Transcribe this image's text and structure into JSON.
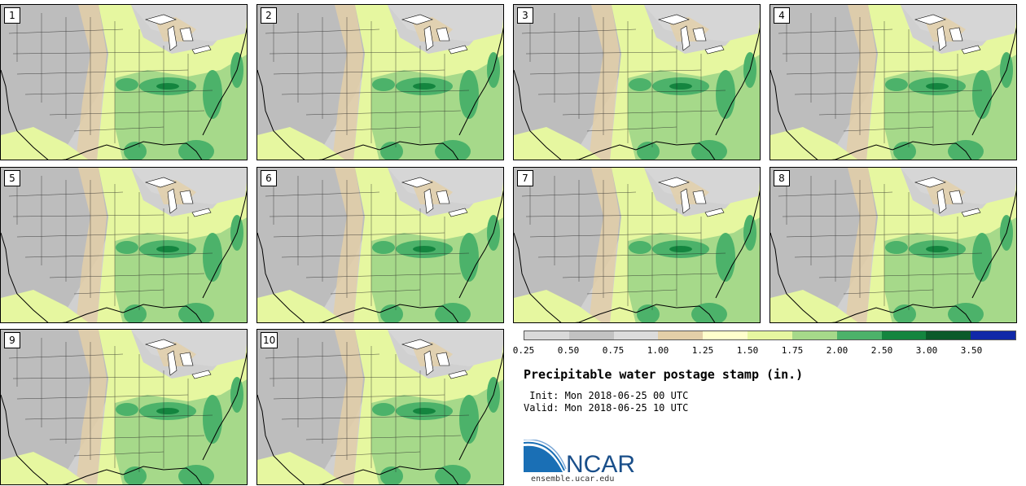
{
  "panels": [
    "1",
    "2",
    "3",
    "4",
    "5",
    "6",
    "7",
    "8",
    "9",
    "10"
  ],
  "colorbar": {
    "colors": [
      "#d9d9d9",
      "#c2c2c2",
      "#dcdcdc",
      "#e3cfa8",
      "#ffffcc",
      "#e6f7a0",
      "#a6d98a",
      "#4cb26a",
      "#14853f",
      "#0b5a2a",
      "#1028a8"
    ],
    "labels": [
      "0.25",
      "0.50",
      "0.75",
      "1.00",
      "1.25",
      "1.50",
      "1.75",
      "2.00",
      "2.50",
      "3.00",
      "3.50"
    ]
  },
  "title": "Precipitable water postage stamp (in.)",
  "init": " Init: Mon 2018-06-25 00 UTC",
  "valid": "Valid: Mon 2018-06-25 10 UTC",
  "logo": {
    "text": "NCAR",
    "url": "ensemble.ucar.edu"
  }
}
